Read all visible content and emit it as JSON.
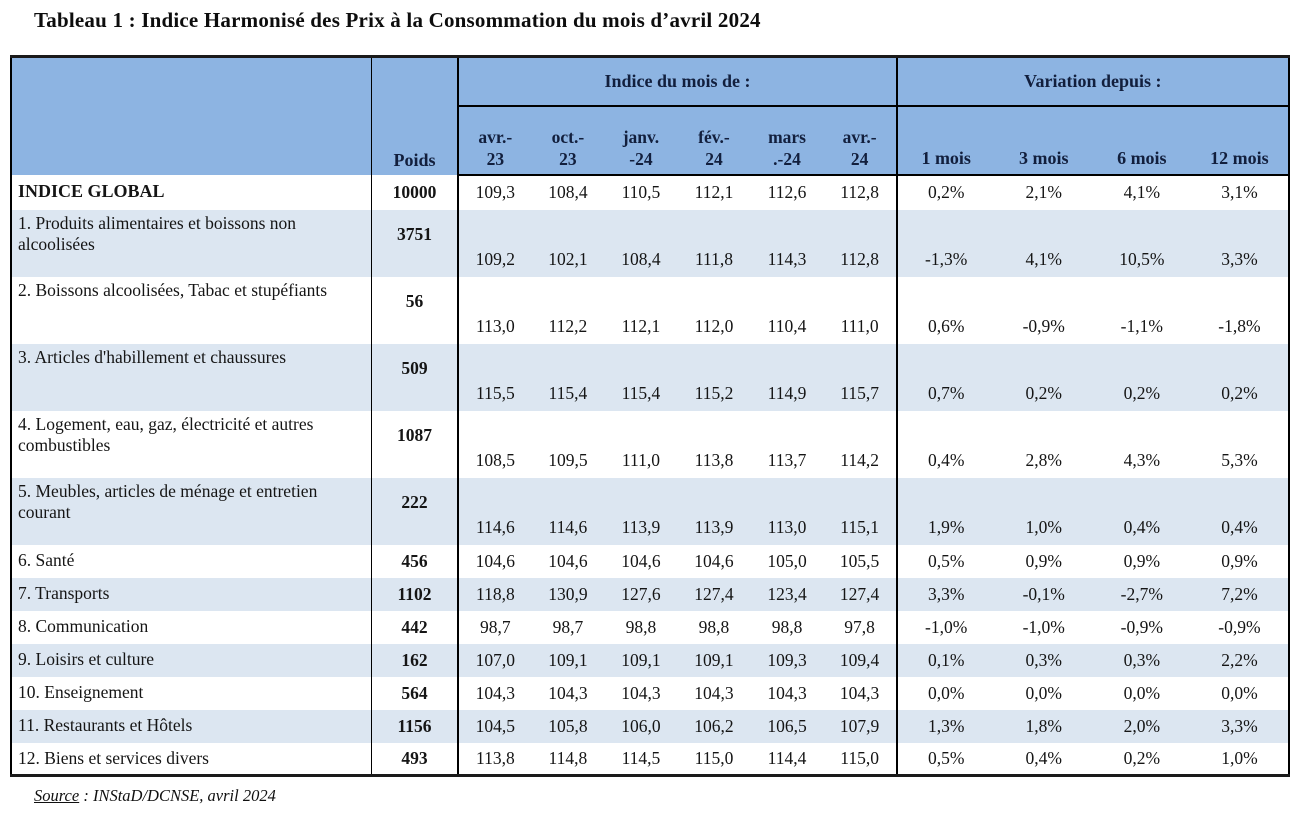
{
  "title": "Tableau 1 : Indice Harmonisé des Prix à la Consommation du mois d’avril 2024",
  "header": {
    "poids": "Poids",
    "indice_group": "Indice du mois de :",
    "variation_group": "Variation depuis :",
    "months": [
      {
        "l1": "avr.-",
        "l2": "23"
      },
      {
        "l1": "oct.-",
        "l2": "23"
      },
      {
        "l1": "janv.",
        "l2": "-24"
      },
      {
        "l1": "fév.-",
        "l2": "24"
      },
      {
        "l1": "mars",
        "l2": ".-24"
      },
      {
        "l1": "avr.-",
        "l2": "24"
      }
    ],
    "periods": [
      "1 mois",
      "3 mois",
      "6 mois",
      "12 mois"
    ]
  },
  "rows": [
    {
      "label": "INDICE GLOBAL",
      "bold": true,
      "tall": false,
      "poids": "10000",
      "indices": [
        "109,3",
        "108,4",
        "110,5",
        "112,1",
        "112,6",
        "112,8"
      ],
      "variations": [
        "0,2%",
        "2,1%",
        "4,1%",
        "3,1%"
      ]
    },
    {
      "label": "1. Produits alimentaires et boissons non alcoolisées",
      "bold": false,
      "tall": true,
      "poids": "3751",
      "indices": [
        "109,2",
        "102,1",
        "108,4",
        "111,8",
        "114,3",
        "112,8"
      ],
      "variations": [
        "-1,3%",
        "4,1%",
        "10,5%",
        "3,3%"
      ]
    },
    {
      "label": "2. Boissons alcoolisées, Tabac et stupéfiants",
      "bold": false,
      "tall": true,
      "poids": "56",
      "indices": [
        "113,0",
        "112,2",
        "112,1",
        "112,0",
        "110,4",
        "111,0"
      ],
      "variations": [
        "0,6%",
        "-0,9%",
        "-1,1%",
        "-1,8%"
      ]
    },
    {
      "label": "3. Articles d'habillement et chaussures",
      "bold": false,
      "tall": true,
      "poids": "509",
      "indices": [
        "115,5",
        "115,4",
        "115,4",
        "115,2",
        "114,9",
        "115,7"
      ],
      "variations": [
        "0,7%",
        "0,2%",
        "0,2%",
        "0,2%"
      ]
    },
    {
      "label": "4. Logement, eau, gaz, électricité et autres combustibles",
      "bold": false,
      "tall": true,
      "poids": "1087",
      "indices": [
        "108,5",
        "109,5",
        "111,0",
        "113,8",
        "113,7",
        "114,2"
      ],
      "variations": [
        "0,4%",
        "2,8%",
        "4,3%",
        "5,3%"
      ]
    },
    {
      "label": "5. Meubles, articles de ménage et entretien courant",
      "bold": false,
      "tall": true,
      "poids": "222",
      "indices": [
        "114,6",
        "114,6",
        "113,9",
        "113,9",
        "113,0",
        "115,1"
      ],
      "variations": [
        "1,9%",
        "1,0%",
        "0,4%",
        "0,4%"
      ]
    },
    {
      "label": "6. Santé",
      "bold": false,
      "tall": false,
      "poids": "456",
      "indices": [
        "104,6",
        "104,6",
        "104,6",
        "104,6",
        "105,0",
        "105,5"
      ],
      "variations": [
        "0,5%",
        "0,9%",
        "0,9%",
        "0,9%"
      ]
    },
    {
      "label": "7. Transports",
      "bold": false,
      "tall": false,
      "poids": "1102",
      "indices": [
        "118,8",
        "130,9",
        "127,6",
        "127,4",
        "123,4",
        "127,4"
      ],
      "variations": [
        "3,3%",
        "-0,1%",
        "-2,7%",
        "7,2%"
      ]
    },
    {
      "label": "8. Communication",
      "bold": false,
      "tall": false,
      "poids": "442",
      "indices": [
        "98,7",
        "98,7",
        "98,8",
        "98,8",
        "98,8",
        "97,8"
      ],
      "variations": [
        "-1,0%",
        "-1,0%",
        "-0,9%",
        "-0,9%"
      ]
    },
    {
      "label": "9. Loisirs et culture",
      "bold": false,
      "tall": false,
      "poids": "162",
      "indices": [
        "107,0",
        "109,1",
        "109,1",
        "109,1",
        "109,3",
        "109,4"
      ],
      "variations": [
        "0,1%",
        "0,3%",
        "0,3%",
        "2,2%"
      ]
    },
    {
      "label": "10. Enseignement",
      "bold": false,
      "tall": false,
      "poids": "564",
      "indices": [
        "104,3",
        "104,3",
        "104,3",
        "104,3",
        "104,3",
        "104,3"
      ],
      "variations": [
        "0,0%",
        "0,0%",
        "0,0%",
        "0,0%"
      ]
    },
    {
      "label": "11. Restaurants et Hôtels",
      "bold": false,
      "tall": false,
      "poids": "1156",
      "indices": [
        "104,5",
        "105,8",
        "106,0",
        "106,2",
        "106,5",
        "107,9"
      ],
      "variations": [
        "1,3%",
        "1,8%",
        "2,0%",
        "3,3%"
      ]
    },
    {
      "label": "12. Biens et services divers",
      "bold": false,
      "tall": false,
      "poids": "493",
      "indices": [
        "113,8",
        "114,8",
        "114,5",
        "115,0",
        "114,4",
        "115,0"
      ],
      "variations": [
        "0,5%",
        "0,4%",
        "0,2%",
        "1,0%"
      ]
    }
  ],
  "source": {
    "label": "Source",
    "rest": " : INStaD/DCNSE, avril 2024"
  },
  "colors": {
    "header_bg": "#8db4e2",
    "row_alt_bg": "#dce6f1",
    "border": "#000000"
  }
}
